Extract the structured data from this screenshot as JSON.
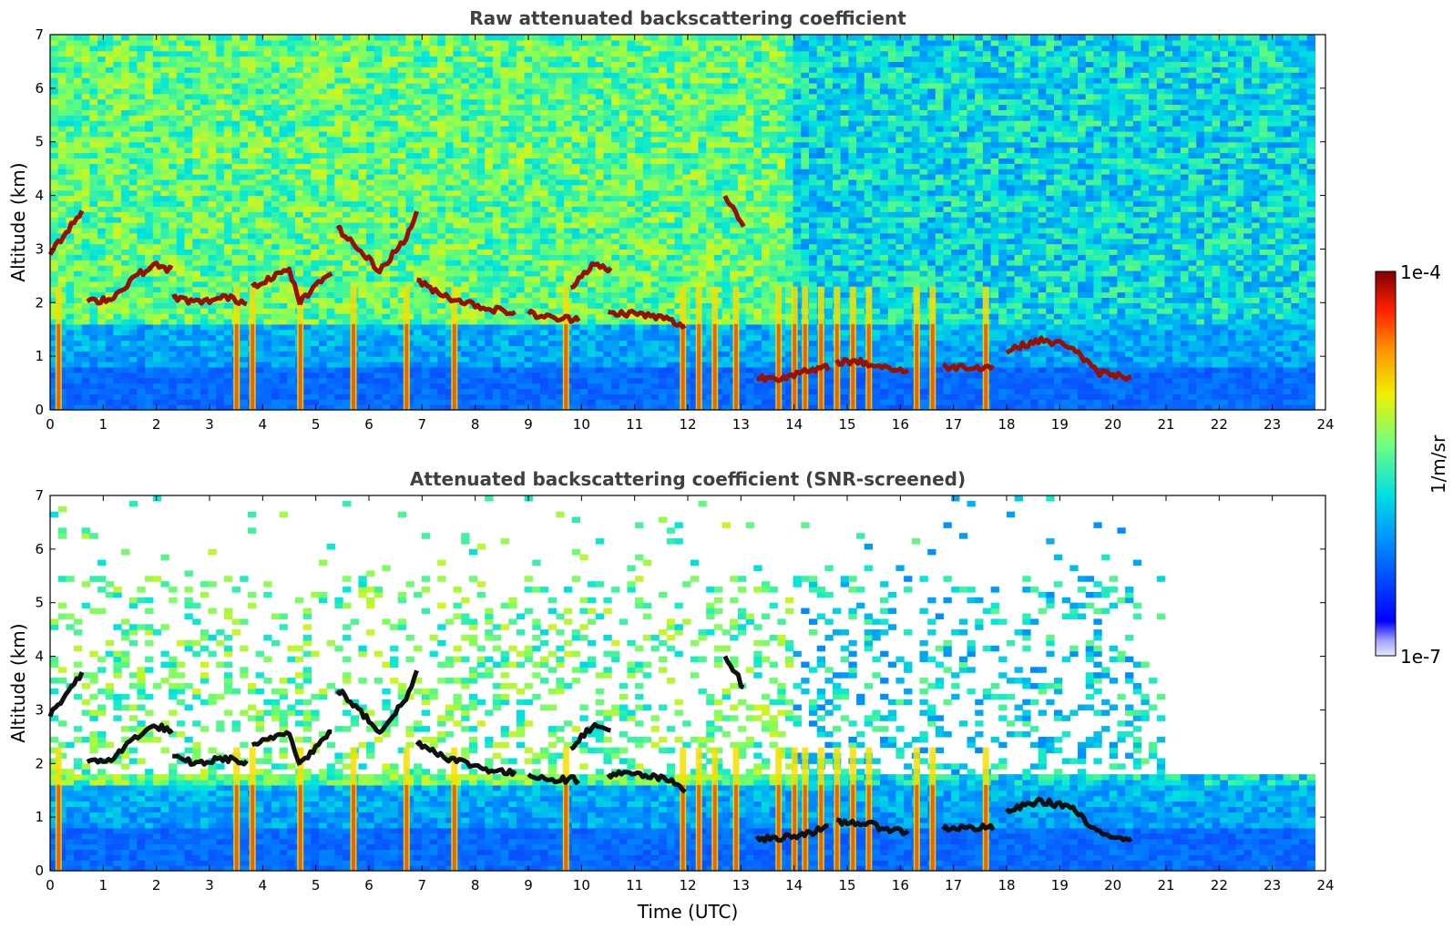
{
  "chart_data": [
    {
      "type": "heatmap",
      "title": "Raw attenuated backscattering coefficient",
      "xlabel": "",
      "ylabel": "Altitude (km)",
      "xlim": [
        0,
        24
      ],
      "ylim": [
        0,
        7
      ],
      "x_ticks": [
        "0",
        "1",
        "2",
        "3",
        "4",
        "5",
        "6",
        "7",
        "8",
        "9",
        "10",
        "11",
        "12",
        "13",
        "14",
        "15",
        "16",
        "17",
        "18",
        "19",
        "20",
        "21",
        "22",
        "23",
        "24"
      ],
      "y_ticks": [
        "0",
        "1",
        "2",
        "3",
        "4",
        "5",
        "6",
        "7"
      ],
      "data_end_time": 23.8,
      "colorscale": "jet",
      "screened": false,
      "cloud_layers": [
        {
          "t": [
            0.0,
            0.3,
            0.6
          ],
          "alt": [
            2.9,
            3.3,
            3.7
          ]
        },
        {
          "t": [
            0.7,
            1.2,
            1.6,
            2.0,
            2.3
          ],
          "alt": [
            2.0,
            2.1,
            2.5,
            2.7,
            2.6
          ]
        },
        {
          "t": [
            2.3,
            2.8,
            3.3,
            3.7
          ],
          "alt": [
            2.1,
            2.0,
            2.1,
            2.0
          ]
        },
        {
          "t": [
            3.8,
            4.2,
            4.5,
            4.7
          ],
          "alt": [
            2.3,
            2.5,
            2.6,
            2.0
          ]
        },
        {
          "t": [
            4.7,
            5.0,
            5.3
          ],
          "alt": [
            2.0,
            2.3,
            2.6
          ]
        },
        {
          "t": [
            5.4,
            5.8,
            6.2,
            6.7,
            6.9
          ],
          "alt": [
            3.4,
            3.0,
            2.6,
            3.2,
            3.7
          ]
        },
        {
          "t": [
            6.9,
            7.5,
            8.2,
            8.8
          ],
          "alt": [
            2.4,
            2.1,
            1.9,
            1.8
          ]
        },
        {
          "t": [
            9.0,
            9.5,
            10.0
          ],
          "alt": [
            1.8,
            1.7,
            1.7
          ]
        },
        {
          "t": [
            9.8,
            10.2,
            10.6
          ],
          "alt": [
            2.3,
            2.7,
            2.6
          ]
        },
        {
          "t": [
            10.5,
            11.0,
            11.6,
            12.0
          ],
          "alt": [
            1.8,
            1.8,
            1.7,
            1.5
          ]
        },
        {
          "t": [
            12.7,
            12.9,
            13.1
          ],
          "alt": [
            4.0,
            3.7,
            3.3
          ]
        },
        {
          "t": [
            13.3,
            13.7,
            14.2,
            14.7
          ],
          "alt": [
            0.6,
            0.6,
            0.7,
            0.8
          ]
        },
        {
          "t": [
            14.8,
            15.2,
            15.7,
            16.2
          ],
          "alt": [
            0.9,
            0.9,
            0.8,
            0.7
          ]
        },
        {
          "t": [
            16.8,
            17.3,
            17.8
          ],
          "alt": [
            0.8,
            0.8,
            0.8
          ]
        },
        {
          "t": [
            18.0,
            18.6,
            19.2,
            19.7,
            20.4
          ],
          "alt": [
            1.1,
            1.3,
            1.2,
            0.7,
            0.6
          ]
        }
      ],
      "precip_columns": [
        0.15,
        3.5,
        3.8,
        4.7,
        5.7,
        6.7,
        7.6,
        9.7,
        11.9,
        12.2,
        12.5,
        12.9,
        13.7,
        14.0,
        14.2,
        14.5,
        14.8,
        15.1,
        15.4,
        16.3,
        16.6,
        17.6
      ]
    },
    {
      "type": "heatmap",
      "title": "Attenuated backscattering coefficient (SNR-screened)",
      "xlabel": "Time (UTC)",
      "ylabel": "Altitude (km)",
      "xlim": [
        0,
        24
      ],
      "ylim": [
        0,
        7
      ],
      "x_ticks": [
        "0",
        "1",
        "2",
        "3",
        "4",
        "5",
        "6",
        "7",
        "8",
        "9",
        "10",
        "11",
        "12",
        "13",
        "14",
        "15",
        "16",
        "17",
        "18",
        "19",
        "20",
        "21",
        "22",
        "23",
        "24"
      ],
      "y_ticks": [
        "0",
        "1",
        "2",
        "3",
        "4",
        "5",
        "6",
        "7"
      ],
      "data_end_time": 23.8,
      "colorscale": "jet",
      "screened": true
    }
  ],
  "colorbar": {
    "min_label": "1e-7",
    "max_label": "1e-4",
    "unit_label": "1/m/sr",
    "scale": "log"
  }
}
